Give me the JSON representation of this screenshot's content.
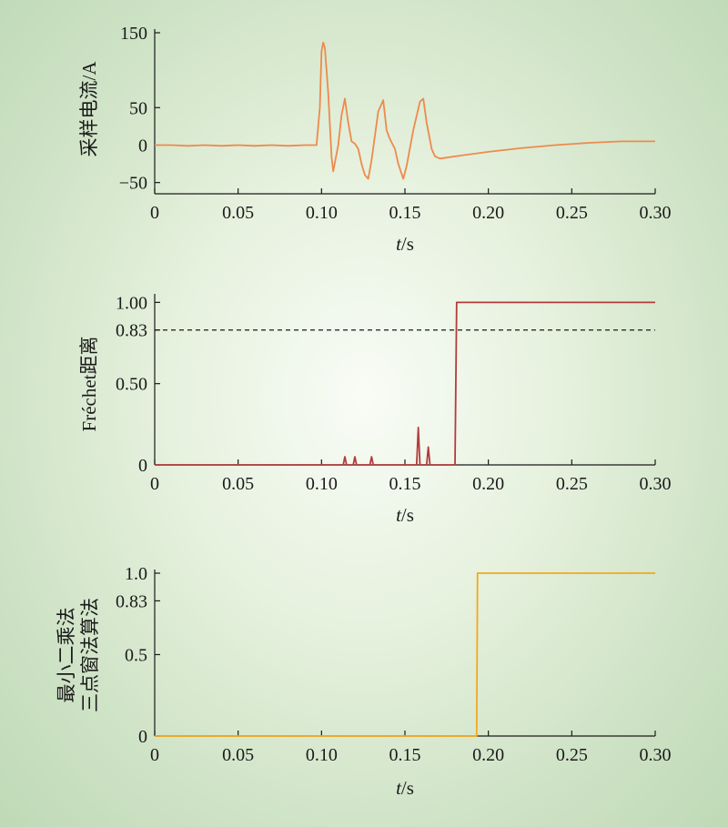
{
  "chart_data": [
    {
      "type": "line",
      "ylabel": "采样电流/A",
      "xlabel": "t/s",
      "xlim": [
        0,
        0.3
      ],
      "ylim": [
        -65,
        150
      ],
      "x_ticks": [
        "0",
        "0.05",
        "0.10",
        "0.15",
        "0.20",
        "0.25",
        "0.30"
      ],
      "y_ticks": [
        "150",
        "50",
        "0",
        "−50"
      ],
      "color": "#ee8a4c",
      "series": [
        {
          "x": [
            0,
            0.01,
            0.02,
            0.03,
            0.04,
            0.05,
            0.06,
            0.07,
            0.08,
            0.09,
            0.097,
            0.099,
            0.1,
            0.101,
            0.102,
            0.104,
            0.106,
            0.107,
            0.11,
            0.112,
            0.114,
            0.116,
            0.118,
            0.12,
            0.122,
            0.124,
            0.126,
            0.128,
            0.13,
            0.134,
            0.137,
            0.139,
            0.141,
            0.144,
            0.146,
            0.149,
            0.151,
            0.155,
            0.159,
            0.161,
            0.163,
            0.166,
            0.168,
            0.171,
            0.18,
            0.2,
            0.22,
            0.24,
            0.26,
            0.28,
            0.29,
            0.3
          ],
          "y": [
            0,
            0,
            -1,
            0,
            -1,
            0,
            -1,
            0,
            -1,
            0,
            0,
            50,
            125,
            137,
            130,
            70,
            -15,
            -35,
            0,
            40,
            62,
            30,
            5,
            2,
            -5,
            -25,
            -40,
            -45,
            -20,
            45,
            60,
            20,
            8,
            -5,
            -25,
            -45,
            -28,
            20,
            58,
            62,
            30,
            -5,
            -15,
            -18,
            -15,
            -9,
            -4,
            0,
            3,
            5,
            5,
            5
          ]
        }
      ]
    },
    {
      "type": "line",
      "ylabel": "Fréchet距离",
      "xlabel": "t/s",
      "xlim": [
        0,
        0.3
      ],
      "ylim": [
        0,
        1.03
      ],
      "x_ticks": [
        "0",
        "0.05",
        "0.10",
        "0.15",
        "0.20",
        "0.25",
        "0.30"
      ],
      "y_ticks": [
        "1.00",
        "0.83",
        "0.50",
        "0"
      ],
      "threshold": 0.83,
      "color": "#b23c3c",
      "series": [
        {
          "x": [
            0,
            0.113,
            0.114,
            0.115,
            0.119,
            0.12,
            0.121,
            0.129,
            0.13,
            0.131,
            0.157,
            0.158,
            0.159,
            0.163,
            0.164,
            0.165,
            0.18,
            0.181,
            0.3
          ],
          "y": [
            0,
            0,
            0.05,
            0,
            0,
            0.05,
            0,
            0,
            0.05,
            0,
            0,
            0.23,
            0,
            0,
            0.11,
            0,
            0,
            1.0,
            1.0
          ]
        }
      ]
    },
    {
      "type": "line",
      "ylabel": "最小二乘法\n三点窗法算法",
      "xlabel": "t/s",
      "xlim": [
        0,
        0.3
      ],
      "ylim": [
        0,
        1.0
      ],
      "x_ticks": [
        "0",
        "0.05",
        "0.10",
        "0.15",
        "0.20",
        "0.25",
        "0.30"
      ],
      "y_ticks": [
        "1.0",
        "0.83",
        "0.5",
        "0"
      ],
      "color": "#f2a91b",
      "series": [
        {
          "x": [
            0,
            0.193,
            0.1935,
            0.3
          ],
          "y": [
            0,
            0,
            1.0,
            1.0
          ]
        }
      ]
    }
  ]
}
